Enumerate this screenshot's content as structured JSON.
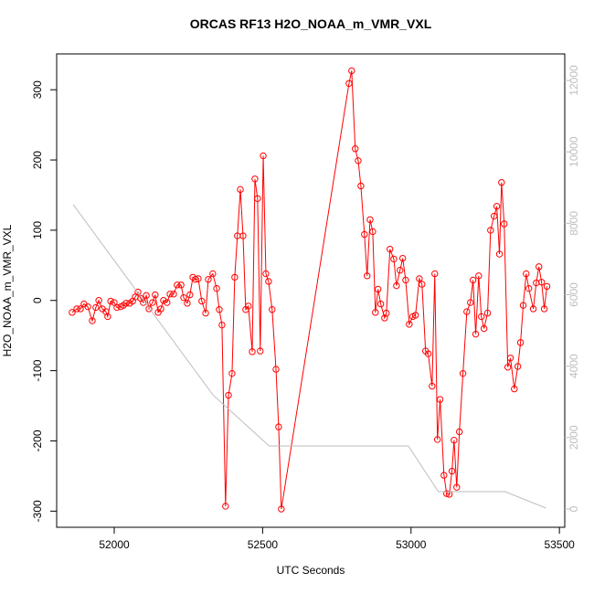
{
  "chart_data": {
    "type": "line",
    "title": "ORCAS RF13 H2O_NOAA_m_VMR_VXL",
    "xlabel": "UTC Seconds",
    "ylabel": "H2O_NOAA_m_VMR_VXL",
    "xlim": [
      51806,
      53518
    ],
    "xticks": [
      52000,
      52500,
      53000,
      53500
    ],
    "ylim": [
      -323,
      351
    ],
    "yticks": [
      -300,
      -200,
      -100,
      0,
      100,
      200,
      300
    ],
    "y2lim": [
      -512,
      12742
    ],
    "y2ticks": [
      0,
      2000,
      4000,
      6000,
      8000,
      10000,
      12000
    ],
    "series": [
      {
        "color": "#ff0000",
        "markers": true,
        "x": [
          51858,
          51874,
          51886,
          51898,
          51911,
          51926,
          51938,
          51948,
          51960,
          51972,
          51978,
          51988,
          52000,
          52009,
          52022,
          52031,
          52040,
          52052,
          52062,
          52071,
          52080,
          52089,
          52098,
          52108,
          52117,
          52129,
          52138,
          52148,
          52157,
          52166,
          52178,
          52188,
          52200,
          52212,
          52225,
          52234,
          52246,
          52255,
          52265,
          52274,
          52283,
          52295,
          52308,
          52317,
          52332,
          52345,
          52354,
          52363,
          52375,
          52385,
          52397,
          52406,
          52415,
          52425,
          52434,
          52443,
          52452,
          52465,
          52474,
          52483,
          52492,
          52502,
          52511,
          52520,
          52532,
          52545,
          52554,
          52563,
          52791,
          52800,
          52812,
          52822,
          52831,
          52843,
          52852,
          52862,
          52871,
          52880,
          52889,
          52898,
          52911,
          52917,
          52929,
          52942,
          52951,
          52963,
          52972,
          52982,
          52994,
          53006,
          53015,
          53028,
          53037,
          53049,
          53058,
          53071,
          53080,
          53089,
          53098,
          53111,
          53120,
          53129,
          53138,
          53145,
          53154,
          53163,
          53175,
          53188,
          53200,
          53209,
          53218,
          53228,
          53237,
          53246,
          53258,
          53268,
          53280,
          53289,
          53298,
          53305,
          53314,
          53326,
          53335,
          53348,
          53360,
          53369,
          53378,
          53388,
          53397,
          53412,
          53422,
          53431,
          53440,
          53449,
          53458
        ],
        "values": [
          -17,
          -12,
          -12,
          -5,
          -9,
          -29,
          -10,
          0,
          -12,
          -16,
          -23,
          -1,
          -3,
          -10,
          -9,
          -7,
          -4,
          -4,
          -1,
          5,
          12,
          3,
          -3,
          7,
          -12,
          -3,
          8,
          -17,
          -12,
          0,
          -3,
          9,
          9,
          22,
          22,
          4,
          -4,
          8,
          33,
          30,
          31,
          -1,
          -18,
          30,
          38,
          17,
          -13,
          -35,
          -293,
          -135,
          -104,
          33,
          92,
          158,
          92,
          -13,
          -8,
          -73,
          173,
          145,
          -72,
          206,
          38,
          27,
          -13,
          -98,
          -180,
          -297,
          309,
          327,
          216,
          199,
          163,
          94,
          35,
          115,
          98,
          -17,
          16,
          -5,
          -25,
          -18,
          73,
          59,
          21,
          43,
          60,
          29,
          -34,
          -23,
          -21,
          31,
          23,
          -72,
          -76,
          -122,
          38,
          -198,
          -141,
          -249,
          -275,
          -276,
          -243,
          -199,
          -266,
          -187,
          -104,
          -16,
          -3,
          29,
          -48,
          35,
          -23,
          -40,
          -18,
          100,
          120,
          134,
          66,
          168,
          109,
          -95,
          -82,
          -126,
          -94,
          -60,
          -7,
          38,
          17,
          -12,
          25,
          48,
          26,
          -12,
          20
        ]
      },
      {
        "color": "#bebebe",
        "axis": "y2",
        "markers": false,
        "x": [
          51862,
          52332,
          52522,
          52991,
          53092,
          53317,
          53455
        ],
        "values": [
          8521,
          3199,
          1766,
          1766,
          486,
          486,
          26
        ]
      }
    ]
  }
}
